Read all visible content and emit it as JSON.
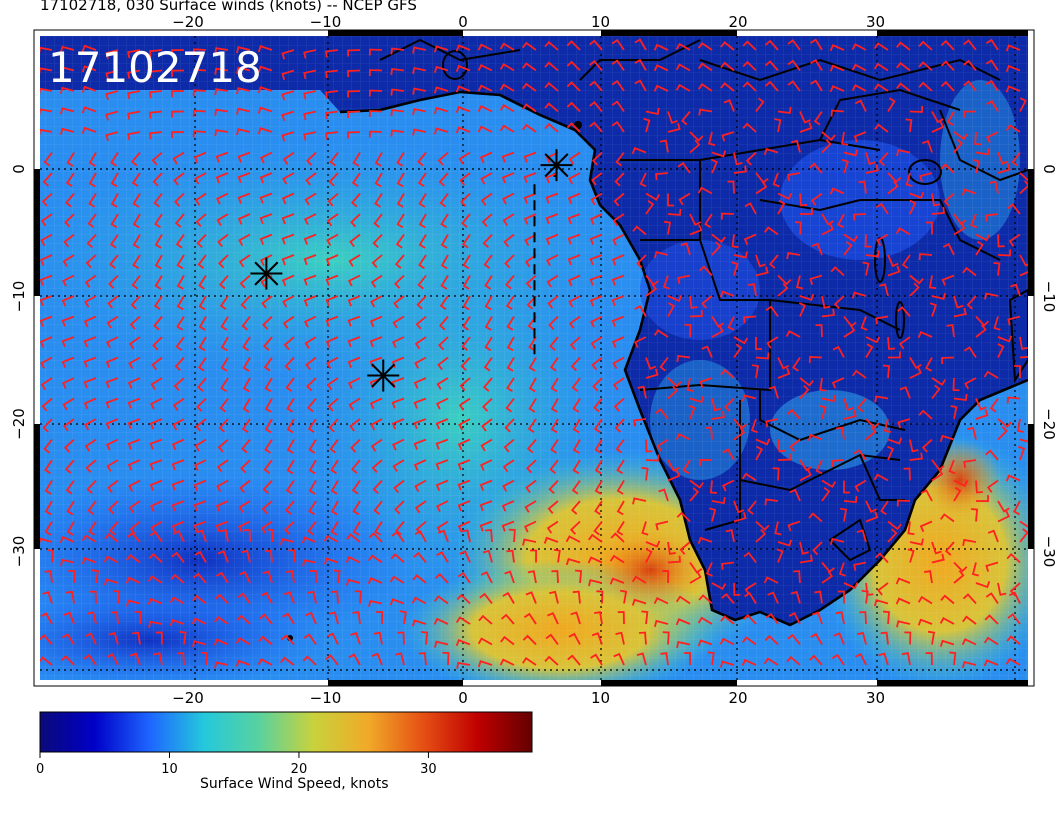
{
  "title": "17102718, 030 Surface winds (knots) -- NCEP GFS",
  "stamp": "17102718",
  "map": {
    "lon_range": [
      -30,
      41
    ],
    "lat_range": [
      -39,
      10
    ],
    "lon_ticks": [
      -20,
      -10,
      0,
      10,
      20,
      30
    ],
    "lat_ticks": [
      0,
      -10,
      -20,
      -30
    ],
    "lon_tick_labels": [
      "−20",
      "−10",
      "0",
      "10",
      "20",
      "30"
    ],
    "lat_tick_labels": [
      "0",
      "−10",
      "−20",
      "−30"
    ],
    "gridlines": "dotted every 10 degrees",
    "land_outline": "black coastlines and country borders",
    "wind_barb_color": "#ff2020",
    "markers": [
      {
        "name": "storm-marker-1",
        "lon": 6.8,
        "lat": 0.3
      },
      {
        "name": "storm-marker-2",
        "lon": -14.3,
        "lat": -8.2
      },
      {
        "name": "storm-marker-3",
        "lon": -5.8,
        "lat": -16.2
      }
    ],
    "dashed_track": {
      "lon": 5.2,
      "lat_from": -1.2,
      "lat_to": -15
    }
  },
  "colorbar": {
    "min": 0,
    "max": 38,
    "tick_values": [
      0,
      10,
      20,
      30
    ],
    "tick_labels": [
      "0",
      "10",
      "20",
      "30"
    ],
    "label": "Surface Wind Speed, knots",
    "colors": [
      "#0a0a78",
      "#0000c8",
      "#1e64ff",
      "#24c8dc",
      "#58d2a0",
      "#c8d23c",
      "#f0aa28",
      "#e65014",
      "#c00000",
      "#640000"
    ]
  }
}
